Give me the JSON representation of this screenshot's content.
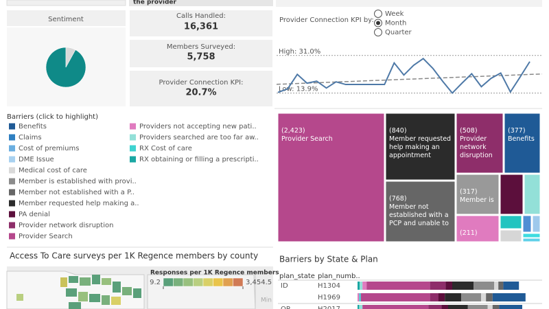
{
  "header": {
    "fragment": "the provider"
  },
  "kpis": [
    {
      "label": "Calls Handled:",
      "value": "16,361"
    },
    {
      "label": "Members Surveyed:",
      "value": "5,758"
    },
    {
      "label": "Provider Connection KPI:",
      "value": "20.7%"
    }
  ],
  "kpi_selector": {
    "label": "Provider Connection KPI by:",
    "options": [
      "Week",
      "Month",
      "Quarter"
    ],
    "selected_index": 1
  },
  "barrier_legend": {
    "title": "Barriers (click to highlight)",
    "items": [
      {
        "label": "Benefits",
        "color": "#1f5a96"
      },
      {
        "label": "Claims",
        "color": "#2e7fc1"
      },
      {
        "label": "Cost of premiums",
        "color": "#6aaee0"
      },
      {
        "label": "DME Issue",
        "color": "#a8d1f0"
      },
      {
        "label": "Medical cost of care",
        "color": "#d9d9d9"
      },
      {
        "label": "Member is established with provi..",
        "color": "#8c8c8c"
      },
      {
        "label": "Member not established with a P..",
        "color": "#666666"
      },
      {
        "label": "Member requested help making a..",
        "color": "#2b2b2b"
      },
      {
        "label": "PA denial",
        "color": "#5c0f3c"
      },
      {
        "label": "Provider network disruption",
        "color": "#8e2e6a"
      },
      {
        "label": "Provider Search",
        "color": "#b5488c"
      },
      {
        "label": "Providers not accepting new pati..",
        "color": "#e07bbf"
      },
      {
        "label": "Providers searched are too far aw..",
        "color": "#93e0d8"
      },
      {
        "label": "RX Cost of care",
        "color": "#3fd3d0"
      },
      {
        "label": "RX obtaining or filling a prescripti..",
        "color": "#1aa7a3"
      }
    ]
  },
  "chart_data": [
    {
      "type": "pie",
      "title": "Sentiment",
      "values": [
        92,
        8
      ],
      "colors": [
        "#0f8a88",
        "#d9d9d9"
      ]
    },
    {
      "type": "line",
      "color": "#4e79a7",
      "ylim": [
        10,
        35
      ],
      "trend_line": true,
      "values": [
        14.2,
        15.8,
        22.4,
        18.4,
        19.3,
        16.2,
        19.0,
        17.8,
        17.8,
        17.8,
        17.8,
        17.8,
        27.6,
        22.1,
        26.5,
        29.6,
        25.1,
        19.3,
        13.9,
        18.4,
        22.7,
        16.8,
        20.6,
        23.0,
        14.4,
        21.2,
        28.2
      ],
      "reference_lines": [
        {
          "value": 31.0,
          "label": "High: 31.0%"
        },
        {
          "value": 13.9,
          "label": "Low: 13.9%"
        }
      ]
    },
    {
      "type": "treemap",
      "items": [
        {
          "value": 2423,
          "value_label": "(2,423)",
          "label": "Provider Search",
          "color": "#b5488c"
        },
        {
          "value": 840,
          "value_label": "(840)",
          "label": "Member requested help making an appointment",
          "color": "#2b2b2b"
        },
        {
          "value": 508,
          "value_label": "(508)",
          "label": "Provider network disruption",
          "color": "#8e2e6a"
        },
        {
          "value": 377,
          "value_label": "(377)",
          "label": "Benefits",
          "color": "#1f5a96"
        },
        {
          "value": 768,
          "value_label": "(768)",
          "label": "Member not established with a PCP and unable to",
          "color": "#666666"
        },
        {
          "value": 317,
          "value_label": "(317)",
          "label": "Member is",
          "color": "#999999"
        },
        {
          "value": 211,
          "value_label": "(211)",
          "color": "#e07bbf"
        },
        {
          "value": 170,
          "color": "#5c0f3c"
        },
        {
          "value": 117,
          "color": "#93e0d8"
        },
        {
          "value": 52,
          "color": "#22c4c0"
        },
        {
          "value": 46,
          "color": "#d6d6d6"
        },
        {
          "value": 25,
          "color": "#4f8fd4"
        },
        {
          "value": 25,
          "color": "#9ec9ec"
        },
        {
          "value": 13,
          "color": "#3fdce0"
        },
        {
          "value": 11,
          "color": "#5fd0e8"
        }
      ]
    },
    {
      "type": "stacked_bar",
      "title": "Barriers by State & Plan",
      "columns": [
        "plan_state",
        "plan_numb.."
      ],
      "rows": [
        {
          "state": "ID",
          "plan": "H1304",
          "segments": [
            {
              "value": 1.3,
              "color": "#1aa7a3"
            },
            {
              "value": 1.7,
              "color": "#93e0d8"
            },
            {
              "value": 2.5,
              "color": "#e07bbf"
            },
            {
              "value": 38.5,
              "color": "#b5488c"
            },
            {
              "value": 9.5,
              "color": "#8e2e6a"
            },
            {
              "value": 4,
              "color": "#5c0f3c"
            },
            {
              "value": 13,
              "color": "#2b2b2b"
            },
            {
              "value": 12.5,
              "color": "#8c8c8c"
            },
            {
              "value": 2.5,
              "color": "#d9d9d9"
            },
            {
              "value": 3,
              "color": "#666666"
            },
            {
              "value": 9.5,
              "color": "#1f5a96"
            }
          ]
        },
        {
          "plan": "H1969",
          "segments": [
            {
              "value": 1,
              "color": "#e07bbf"
            },
            {
              "value": 1,
              "color": "#3fd3d0"
            },
            {
              "value": 42,
              "color": "#b5488c"
            },
            {
              "value": 5,
              "color": "#8e2e6a"
            },
            {
              "value": 4,
              "color": "#5c0f3c"
            },
            {
              "value": 10,
              "color": "#2b2b2b"
            },
            {
              "value": 12,
              "color": "#8c8c8c"
            },
            {
              "value": 3,
              "color": "#d9d9d9"
            },
            {
              "value": 4,
              "color": "#666666"
            },
            {
              "value": 20,
              "color": "#1f5a96"
            }
          ]
        },
        {
          "state": "OR",
          "plan": "H2017",
          "segments": [
            {
              "value": 1,
              "color": "#1aa7a3"
            },
            {
              "value": 2,
              "color": "#93e0d8"
            },
            {
              "value": 40,
              "color": "#b5488c"
            },
            {
              "value": 8,
              "color": "#8e2e6a"
            },
            {
              "value": 4,
              "color": "#5c0f3c"
            },
            {
              "value": 12,
              "color": "#2b2b2b"
            },
            {
              "value": 12,
              "color": "#8c8c8c"
            },
            {
              "value": 3,
              "color": "#d9d9d9"
            },
            {
              "value": 4,
              "color": "#666666"
            },
            {
              "value": 14,
              "color": "#1f5a96"
            }
          ]
        }
      ]
    },
    {
      "type": "map",
      "title": "Access To Care surveys per 1K Regence members by county",
      "legend_title": "Responses per 1K Regence members",
      "colors": [
        "#5aa07a",
        "#79b07c",
        "#98c07e",
        "#b9cf80",
        "#d9d067",
        "#e9c44a",
        "#e0a050",
        "#d07a55"
      ],
      "range": [
        9.2,
        {
          "value": 3454.5,
          "label": "3,454.5"
        }
      ],
      "place_label": "Min"
    }
  ]
}
